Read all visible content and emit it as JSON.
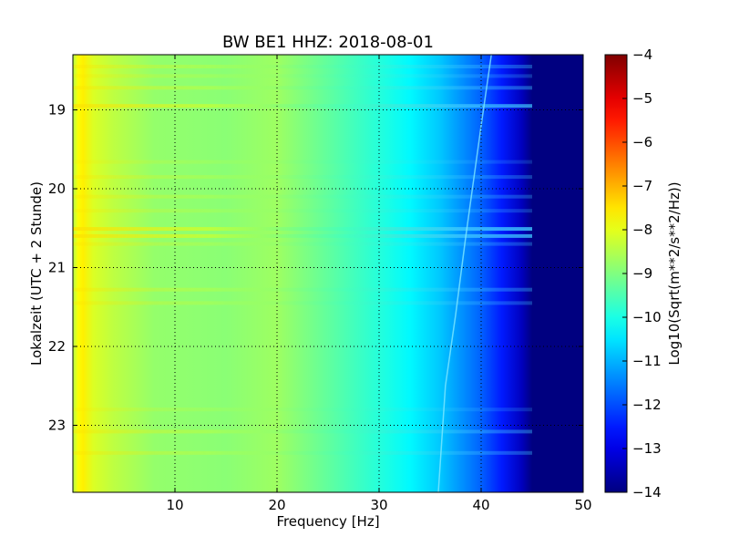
{
  "chart_data": {
    "type": "heatmap",
    "title": "BW BE1 HHZ: 2018-08-01",
    "xlabel": "Frequency [Hz]",
    "ylabel": "Lokalzeit (UTC + 2 Stunde)",
    "xlim": [
      0,
      50
    ],
    "ylim": [
      18.3,
      23.85
    ],
    "y_inverted": true,
    "x_ticks": [
      10,
      20,
      30,
      40,
      50
    ],
    "y_ticks": [
      19,
      20,
      21,
      22,
      23
    ],
    "grid": true,
    "colormap": "jet",
    "colorbar": {
      "label": "Log10(Sqrt(m**2/s**2/Hz))",
      "min": -14,
      "max": -4,
      "ticks": [
        -4,
        -5,
        -6,
        -7,
        -8,
        -9,
        -10,
        -11,
        -12,
        -13,
        -14
      ]
    },
    "spectral_profile": {
      "frequency_hz": [
        0,
        0.5,
        1,
        2,
        4,
        8,
        15,
        20,
        25,
        30,
        33,
        36,
        38,
        40,
        42,
        44,
        45,
        50
      ],
      "log10_amplitude": [
        -8.5,
        -7.8,
        -7.6,
        -8.1,
        -8.4,
        -8.8,
        -8.9,
        -8.7,
        -9.3,
        -9.9,
        -10.3,
        -10.8,
        -11.3,
        -11.8,
        -12.5,
        -13.4,
        -14,
        -14
      ]
    },
    "features": {
      "spectral_line_freq_hz": [
        41,
        40,
        38.5,
        37.5,
        36.5,
        35.8
      ],
      "spectral_line_time": [
        18.3,
        19.2,
        20.6,
        21.6,
        22.5,
        23.85
      ],
      "broadband_event_times": [
        18.45,
        18.57,
        18.72,
        18.95,
        19.66,
        19.85,
        20.1,
        20.28,
        20.51,
        20.6,
        20.7,
        21.28,
        21.45,
        22.8,
        23.08,
        23.35
      ],
      "broadband_event_strength": [
        0.35,
        0.25,
        0.4,
        0.7,
        0.2,
        0.3,
        0.3,
        0.25,
        0.8,
        0.75,
        0.3,
        0.35,
        0.3,
        0.2,
        0.4,
        0.35
      ]
    }
  }
}
